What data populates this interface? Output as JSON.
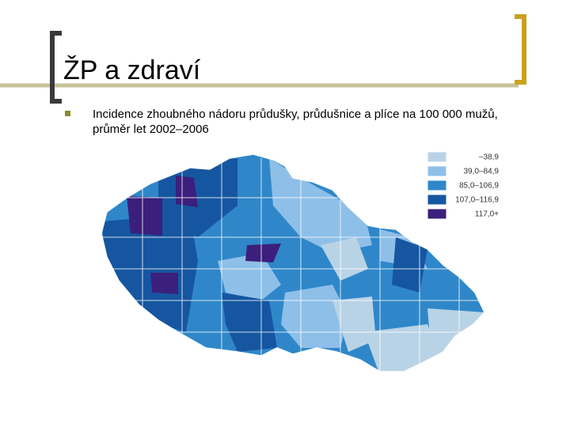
{
  "header": {
    "title": "ŽP a zdraví"
  },
  "body": {
    "bullet": "Incidence zhoubného nádoru průdušky, průdušnice a plíce na 100 000 mužů, průměr let 2002–2006"
  },
  "legend": {
    "items": [
      {
        "label": "–38,9",
        "color": "#b9d3e6"
      },
      {
        "label": "39,0–84,9",
        "color": "#8ebfe8"
      },
      {
        "label": "85,0–106,9",
        "color": "#2f87c9"
      },
      {
        "label": "107,0–116,9",
        "color": "#1656a1"
      },
      {
        "label": "117,0+",
        "color": "#3b1f7c"
      }
    ]
  }
}
